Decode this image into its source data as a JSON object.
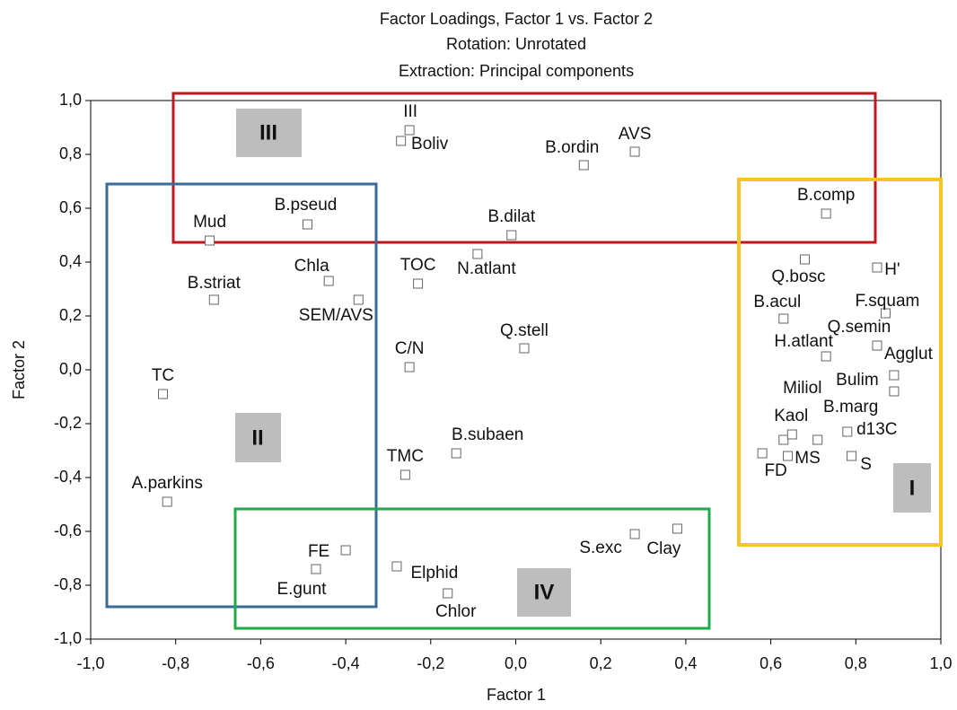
{
  "chart_data": {
    "type": "scatter",
    "title": [
      "Factor Loadings, Factor 1 vs. Factor 2",
      "Rotation: Unrotated",
      "Extraction: Principal components"
    ],
    "x_label": "Factor 1",
    "y_label": "Factor 2",
    "xlim": [
      -1.0,
      1.0
    ],
    "ylim": [
      -1.0,
      1.0
    ],
    "xticks": [
      {
        "value": -1.0,
        "label": "-1,0"
      },
      {
        "value": -0.8,
        "label": "-0,8"
      },
      {
        "value": -0.6,
        "label": "-0,6"
      },
      {
        "value": -0.4,
        "label": "-0,4"
      },
      {
        "value": -0.2,
        "label": "-0,2"
      },
      {
        "value": 0.0,
        "label": "0,0"
      },
      {
        "value": 0.2,
        "label": "0,2"
      },
      {
        "value": 0.4,
        "label": "0,4"
      },
      {
        "value": 0.6,
        "label": "0,6"
      },
      {
        "value": 0.8,
        "label": "0,8"
      },
      {
        "value": 1.0,
        "label": "1,0"
      }
    ],
    "yticks": [
      {
        "value": -1.0,
        "label": "-1,0"
      },
      {
        "value": -0.8,
        "label": "-0,8"
      },
      {
        "value": -0.6,
        "label": "-0,6"
      },
      {
        "value": -0.4,
        "label": "-0,4"
      },
      {
        "value": -0.2,
        "label": "-0,2"
      },
      {
        "value": 0.0,
        "label": "0,0"
      },
      {
        "value": 0.2,
        "label": "0,2"
      },
      {
        "value": 0.4,
        "label": "0,4"
      },
      {
        "value": 0.6,
        "label": "0,6"
      },
      {
        "value": 0.8,
        "label": "0,8"
      },
      {
        "value": 1.0,
        "label": "1,0"
      }
    ],
    "grid": false,
    "color": "#666666",
    "labels": [
      "III",
      "Boliv",
      "B.ordin",
      "AVS",
      "B.comp",
      "Mud",
      "B.pseud",
      "B.dilat",
      "N.atlant",
      "Q.bosc",
      "H'",
      "Chla",
      "TOC",
      "B.striat",
      "SEM/AVS",
      "F.squam",
      "B.acul",
      "Q.stell",
      "Q.semin",
      "H.atlant",
      "C/N",
      "Agglut",
      "TC",
      "Bulim",
      "Miliol",
      "Kaol",
      "B.marg",
      "d13C",
      "FD",
      "MS",
      "S",
      "B.subaen",
      "TMC",
      "A.parkins",
      "S.exc",
      "Clay",
      "FE",
      "E.gunt",
      "Elphid",
      "Chlor"
    ],
    "x": [
      -0.25,
      -0.27,
      0.16,
      0.28,
      0.73,
      -0.72,
      -0.49,
      -0.01,
      -0.09,
      0.68,
      0.85,
      -0.44,
      -0.23,
      -0.71,
      -0.37,
      0.87,
      0.63,
      0.02,
      0.85,
      0.73,
      -0.25,
      0.89,
      -0.83,
      0.89,
      0.63,
      0.65,
      0.71,
      0.78,
      0.58,
      0.64,
      0.79,
      -0.14,
      -0.26,
      -0.82,
      0.28,
      0.38,
      -0.4,
      -0.47,
      -0.28,
      -0.16
    ],
    "values": [
      0.89,
      0.85,
      0.76,
      0.81,
      0.58,
      0.48,
      0.54,
      0.5,
      0.43,
      0.41,
      0.38,
      0.33,
      0.32,
      0.26,
      0.26,
      0.21,
      0.19,
      0.08,
      0.09,
      0.05,
      0.01,
      -0.02,
      -0.09,
      -0.08,
      -0.26,
      -0.24,
      -0.26,
      -0.23,
      -0.31,
      -0.32,
      -0.32,
      -0.31,
      -0.39,
      -0.49,
      -0.61,
      -0.59,
      -0.67,
      -0.74,
      -0.73,
      -0.83
    ],
    "groups": [
      "I",
      "II",
      "III",
      "IV"
    ]
  }
}
